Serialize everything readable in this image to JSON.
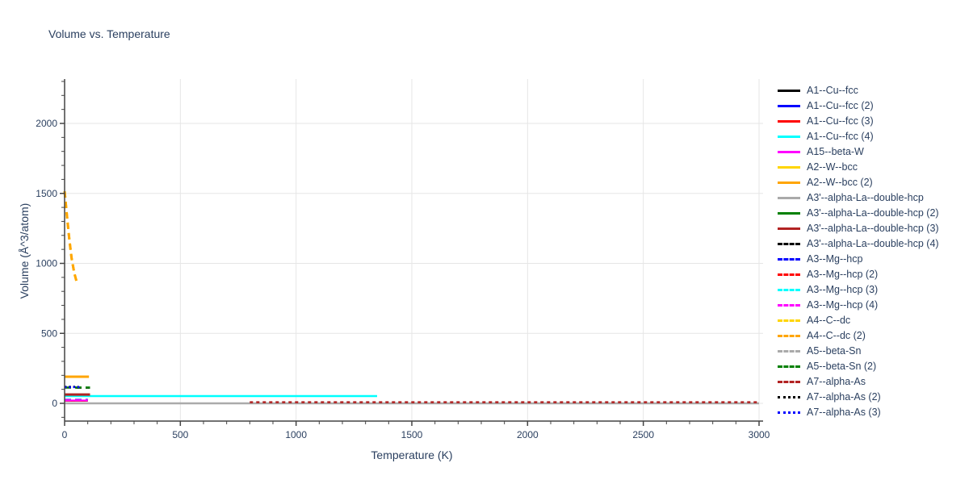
{
  "title": "Volume vs. Temperature",
  "colors": {
    "text": "#2a3f5f",
    "axis": "#444444",
    "grid": "#e6e6e6",
    "background": "#ffffff"
  },
  "chart_data": {
    "type": "line",
    "title": "Volume vs. Temperature",
    "xlabel": "Temperature (K)",
    "ylabel": "Volume (Å^3/atom)",
    "xlim": [
      0,
      3000
    ],
    "ylim": [
      -130,
      2320
    ],
    "grid": true,
    "legend_position": "right",
    "x_ticks": [
      0,
      500,
      1000,
      1500,
      2000,
      2500,
      3000
    ],
    "y_ticks": [
      0,
      500,
      1000,
      1500,
      2000
    ],
    "minor_tick_step": 100,
    "series": [
      {
        "name": "A1--Cu--fcc",
        "color": "#000000",
        "dash": "solid",
        "width": 2,
        "x": [
          0,
          100
        ],
        "y": [
          20,
          20
        ]
      },
      {
        "name": "A1--Cu--fcc (2)",
        "color": "#0000ff",
        "dash": "solid",
        "width": 2,
        "x": [
          0,
          100
        ],
        "y": [
          19,
          19
        ]
      },
      {
        "name": "A1--Cu--fcc (3)",
        "color": "#ff0000",
        "dash": "solid",
        "width": 2,
        "x": [
          0,
          100
        ],
        "y": [
          18,
          18
        ]
      },
      {
        "name": "A1--Cu--fcc (4)",
        "color": "#00ffff",
        "dash": "solid",
        "width": 2.5,
        "x": [
          0,
          1350
        ],
        "y": [
          52,
          52
        ]
      },
      {
        "name": "A15--beta-W",
        "color": "#ff00ff",
        "dash": "solid",
        "width": 2,
        "x": [
          0,
          100
        ],
        "y": [
          21,
          21
        ]
      },
      {
        "name": "A2--W--bcc",
        "color": "#ffd500",
        "dash": "solid",
        "width": 3,
        "x": [
          0,
          105
        ],
        "y": [
          190,
          190
        ]
      },
      {
        "name": "A2--W--bcc (2)",
        "color": "#ffa500",
        "dash": "solid",
        "width": 3,
        "x": [
          0,
          105
        ],
        "y": [
          190,
          190
        ]
      },
      {
        "name": "A3'--alpha-La--double-hcp",
        "color": "#aaaaaa",
        "dash": "solid",
        "width": 2.5,
        "x": [
          0,
          3000
        ],
        "y": [
          0,
          0
        ]
      },
      {
        "name": "A3'--alpha-La--double-hcp (2)",
        "color": "#008000",
        "dash": "solid",
        "width": 2,
        "x": [
          0,
          110
        ],
        "y": [
          64,
          64
        ]
      },
      {
        "name": "A3'--alpha-La--double-hcp (3)",
        "color": "#b22222",
        "dash": "solid",
        "width": 3,
        "x": [
          0,
          110
        ],
        "y": [
          63,
          63
        ]
      },
      {
        "name": "A3'--alpha-La--double-hcp (4)",
        "color": "#000000",
        "dash": "dash",
        "width": 2.5,
        "x": [
          0,
          110
        ],
        "y": [
          112,
          112
        ]
      },
      {
        "name": "A3--Mg--hcp",
        "color": "#0000ff",
        "dash": "dash",
        "width": 2.5,
        "x": [
          0,
          100
        ],
        "y": [
          26,
          26
        ]
      },
      {
        "name": "A3--Mg--hcp (2)",
        "color": "#ff0000",
        "dash": "dash",
        "width": 2.5,
        "x": [
          0,
          100
        ],
        "y": [
          25,
          25
        ]
      },
      {
        "name": "A3--Mg--hcp (3)",
        "color": "#00ffff",
        "dash": "dash",
        "width": 2.5,
        "x": [
          0,
          100
        ],
        "y": [
          24,
          24
        ]
      },
      {
        "name": "A3--Mg--hcp (4)",
        "color": "#ff00ff",
        "dash": "dash",
        "width": 2.5,
        "x": [
          0,
          100
        ],
        "y": [
          23,
          23
        ]
      },
      {
        "name": "A4--C--dc",
        "color": "#ffd500",
        "dash": "dash",
        "width": 3,
        "x": [
          0,
          10,
          20,
          30,
          42,
          55
        ],
        "y": [
          1515,
          1340,
          1180,
          1040,
          930,
          850
        ]
      },
      {
        "name": "A4--C--dc (2)",
        "color": "#ffa500",
        "dash": "dash",
        "width": 3,
        "x": [
          0,
          10,
          20,
          30,
          42,
          55
        ],
        "y": [
          1515,
          1340,
          1180,
          1040,
          930,
          850
        ]
      },
      {
        "name": "A5--beta-Sn",
        "color": "#aaaaaa",
        "dash": "dash",
        "width": 2.5,
        "x": [
          0,
          50
        ],
        "y": [
          110,
          110
        ]
      },
      {
        "name": "A5--beta-Sn (2)",
        "color": "#008000",
        "dash": "dash",
        "width": 2.5,
        "x": [
          0,
          110
        ],
        "y": [
          113,
          113
        ]
      },
      {
        "name": "A7--alpha-As",
        "color": "#b22222",
        "dash": "shortdash",
        "width": 2.5,
        "x": [
          800,
          3000
        ],
        "y": [
          8,
          8
        ]
      },
      {
        "name": "A7--alpha-As (2)",
        "color": "#000000",
        "dash": "dot",
        "width": 2.5,
        "x": [
          0,
          60
        ],
        "y": [
          118,
          118
        ]
      },
      {
        "name": "A7--alpha-As (3)",
        "color": "#0000ff",
        "dash": "dot",
        "width": 2.5,
        "x": [
          0,
          70
        ],
        "y": [
          116,
          116
        ]
      }
    ]
  }
}
